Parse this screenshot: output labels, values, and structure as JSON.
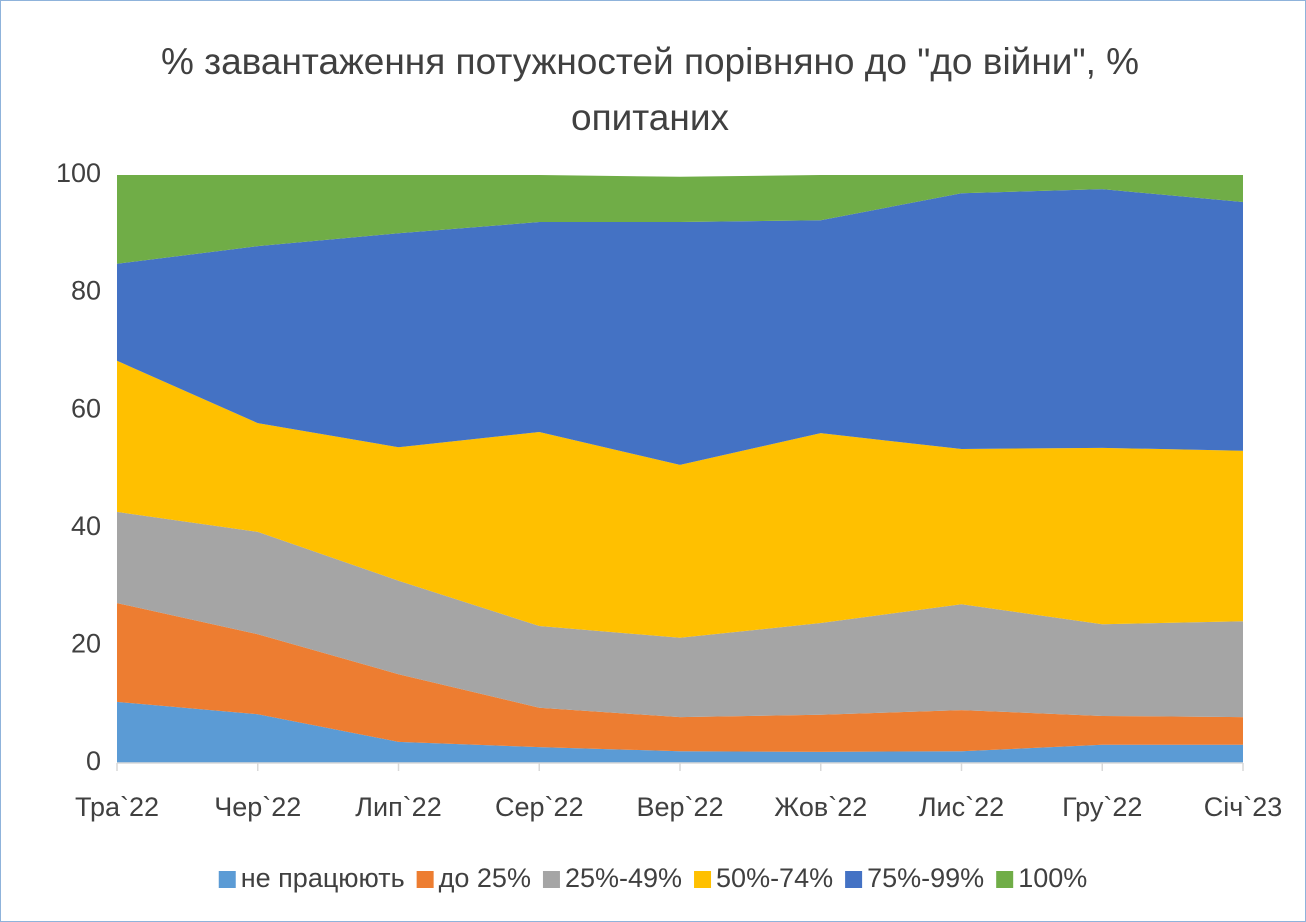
{
  "chart_data": {
    "type": "stacked_area",
    "title": "% завантаження потужностей порівняно до \"до війни\", % опитаних",
    "categories": [
      "Тра`22",
      "Чер`22",
      "Лип`22",
      "Сер`22",
      "Вер`22",
      "Жов`22",
      "Лис`22",
      "Гру`22",
      "Січ`23"
    ],
    "series": [
      {
        "name": "не працюють",
        "color": "#5b9bd5",
        "values": [
          10.4,
          8.3,
          3.6,
          2.7,
          2.0,
          1.9,
          2.0,
          3.1,
          3.1
        ]
      },
      {
        "name": "до 25%",
        "color": "#ed7d31",
        "values": [
          16.8,
          13.6,
          11.5,
          6.7,
          5.8,
          6.3,
          7.0,
          4.9,
          4.7
        ]
      },
      {
        "name": "25%-49%",
        "color": "#a5a5a5",
        "values": [
          15.5,
          17.4,
          15.9,
          13.9,
          13.5,
          15.6,
          18.0,
          15.6,
          16.3
        ]
      },
      {
        "name": "50%-74%",
        "color": "#ffc000",
        "values": [
          25.7,
          18.5,
          22.7,
          33.0,
          29.4,
          32.3,
          26.4,
          30.0,
          29.0
        ]
      },
      {
        "name": "75%-99%",
        "color": "#4472c4",
        "values": [
          16.5,
          30.1,
          36.4,
          35.7,
          41.3,
          36.2,
          43.5,
          44.0,
          42.3
        ]
      },
      {
        "name": "100%",
        "color": "#70ad47",
        "values": [
          15.1,
          12.1,
          9.9,
          8.0,
          7.7,
          7.7,
          3.1,
          2.4,
          4.6
        ]
      }
    ],
    "ylim": [
      0,
      100
    ],
    "yticks": [
      0,
      20,
      40,
      60,
      80,
      100
    ],
    "grid": false,
    "legend": "bottom"
  }
}
